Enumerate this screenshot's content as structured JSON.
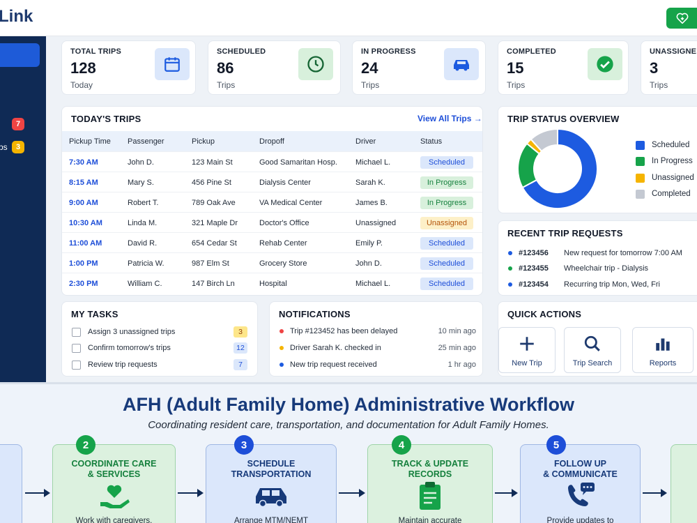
{
  "app": {
    "brand": "Link"
  },
  "sidebar": {
    "badges": [
      {
        "count": "7",
        "color": "#ef4444"
      },
      {
        "count": "3",
        "color": "#f5b400"
      }
    ],
    "partial_label": "ps"
  },
  "stats": [
    {
      "label": "TOTAL TRIPS",
      "value": "128",
      "sub": "Today",
      "icon": "calendar-icon",
      "bg": "#dbe7fb"
    },
    {
      "label": "SCHEDULED",
      "value": "86",
      "sub": "Trips",
      "icon": "clock-icon",
      "bg": "#d8f0dc"
    },
    {
      "label": "IN PROGRESS",
      "value": "24",
      "sub": "Trips",
      "icon": "car-icon",
      "bg": "#dbe7fb"
    },
    {
      "label": "COMPLETED",
      "value": "15",
      "sub": "Trips",
      "icon": "check-circle-icon",
      "bg": "#d8f0dc"
    },
    {
      "label": "UNASSIGNED",
      "value": "3",
      "sub": "Trips",
      "icon": "alert-icon",
      "bg": "#fff"
    }
  ],
  "trips": {
    "title": "TODAY'S TRIPS",
    "view_all": "View All Trips →",
    "columns": [
      "Pickup Time",
      "Passenger",
      "Pickup",
      "Dropoff",
      "Driver",
      "Status"
    ],
    "rows": [
      [
        "7:30 AM",
        "John D.",
        "123 Main St",
        "Good Samaritan Hosp.",
        "Michael L.",
        "Scheduled"
      ],
      [
        "8:15 AM",
        "Mary S.",
        "456 Pine St",
        "Dialysis Center",
        "Sarah K.",
        "In Progress"
      ],
      [
        "9:00 AM",
        "Robert T.",
        "789 Oak Ave",
        "VA Medical Center",
        "James B.",
        "In Progress"
      ],
      [
        "10:30 AM",
        "Linda M.",
        "321 Maple Dr",
        "Doctor's Office",
        "Unassigned",
        "Unassigned"
      ],
      [
        "11:00 AM",
        "David R.",
        "654 Cedar St",
        "Rehab Center",
        "Emily P.",
        "Scheduled"
      ],
      [
        "1:00 PM",
        "Patricia W.",
        "987 Elm St",
        "Grocery Store",
        "John D.",
        "Scheduled"
      ],
      [
        "2:30 PM",
        "William C.",
        "147 Birch Ln",
        "Hospital",
        "Michael L.",
        "Scheduled"
      ]
    ],
    "status_colors": {
      "Scheduled": {
        "bg": "#dbe7fb",
        "fg": "#1d4ed8"
      },
      "In Progress": {
        "bg": "#d8f0dc",
        "fg": "#15803d"
      },
      "Unassigned": {
        "bg": "#fdf0c8",
        "fg": "#b45309"
      }
    }
  },
  "overview": {
    "title": "TRIP STATUS OVERVIEW",
    "segments": [
      {
        "label": "Scheduled",
        "value": 86,
        "color": "#1d5be0"
      },
      {
        "label": "In Progress",
        "value": 24,
        "color": "#16a34a"
      },
      {
        "label": "Unassigned",
        "value": 3,
        "color": "#f5b400"
      },
      {
        "label": "Completed",
        "value": 15,
        "color": "#c4c9d2"
      }
    ]
  },
  "requests": {
    "title": "RECENT TRIP REQUESTS",
    "items": [
      {
        "id": "#123456",
        "text": "New request for tomorrow 7:00 AM",
        "color": "#1d5be0"
      },
      {
        "id": "#123455",
        "text": "Wheelchair trip - Dialysis",
        "color": "#16a34a"
      },
      {
        "id": "#123454",
        "text": "Recurring trip Mon, Wed, Fri",
        "color": "#1d5be0"
      }
    ]
  },
  "tasks": {
    "title": "MY TASKS",
    "items": [
      {
        "text": "Assign 3 unassigned trips",
        "count": "3",
        "bg": "#fde68a",
        "fg": "#92400e"
      },
      {
        "text": "Confirm tomorrow's trips",
        "count": "12",
        "bg": "#dbe7fb",
        "fg": "#1d4ed8"
      },
      {
        "text": "Review trip requests",
        "count": "7",
        "bg": "#dbe7fb",
        "fg": "#1d4ed8"
      }
    ]
  },
  "notifications": {
    "title": "NOTIFICATIONS",
    "items": [
      {
        "text": "Trip #123452 has been delayed",
        "time": "10 min ago",
        "color": "#ef4444"
      },
      {
        "text": "Driver Sarah K. checked in",
        "time": "25 min ago",
        "color": "#f5b400"
      },
      {
        "text": "New trip request received",
        "time": "1 hr ago",
        "color": "#1d5be0"
      }
    ]
  },
  "quick_actions": {
    "title": "QUICK ACTIONS",
    "items": [
      {
        "label": "New Trip",
        "icon": "plus-icon"
      },
      {
        "label": "Trip Search",
        "icon": "search-icon"
      },
      {
        "label": "Reports",
        "icon": "bar-chart-icon"
      }
    ]
  },
  "workflow": {
    "title": "AFH (Adult Family Home) Administrative Workflow",
    "subtitle": "Coordinating resident care, transportation, and documentation for Adult Family Homes.",
    "partial_first": "L /",
    "steps": [
      {
        "num": "2",
        "title1": "COORDINATE CARE",
        "title2": "& SERVICES",
        "desc": "Work with caregivers,",
        "icon": "heart-hand-icon",
        "theme": "green"
      },
      {
        "num": "3",
        "title1": "SCHEDULE",
        "title2": "TRANSPORTATION",
        "desc": "Arrange MTM/NEMT",
        "icon": "car-icon",
        "theme": "blue"
      },
      {
        "num": "4",
        "title1": "TRACK & UPDATE",
        "title2": "RECORDS",
        "desc": "Maintain accurate",
        "icon": "clipboard-icon",
        "theme": "green"
      },
      {
        "num": "5",
        "title1": "FOLLOW UP",
        "title2": "& COMMUNICATE",
        "desc": "Provide updates to",
        "icon": "phone-chat-icon",
        "theme": "blue"
      }
    ]
  }
}
